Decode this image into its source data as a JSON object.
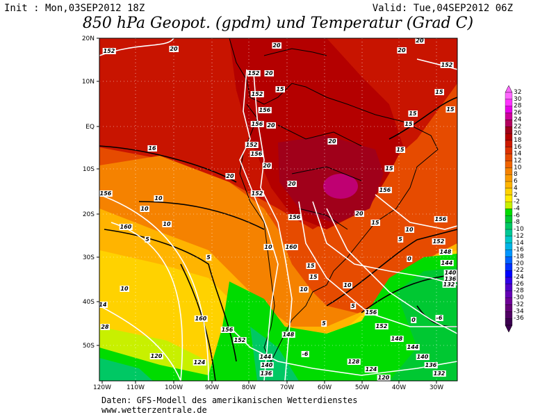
{
  "header": {
    "init": "Init : Mon,03SEP2012 18Z",
    "valid": "Valid: Tue,04SEP2012 06Z",
    "title": "850 hPa Geopot. (gpdm) und Temperatur (Grad C)"
  },
  "map": {
    "lon_labels": [
      "120W",
      "110W",
      "100W",
      "90W",
      "80W",
      "70W",
      "60W",
      "50W",
      "40W",
      "30W"
    ],
    "lat_labels": [
      "20N",
      "10N",
      "EQ",
      "10S",
      "20S",
      "30S",
      "40S",
      "50S"
    ],
    "contour_labels": [
      152,
      20,
      20,
      20,
      20,
      152,
      152,
      20,
      15,
      152,
      15,
      156,
      15,
      15,
      156,
      15,
      20,
      16,
      152,
      20,
      156,
      15,
      20,
      20,
      15,
      156,
      10,
      152,
      20,
      156,
      10,
      10,
      156,
      20,
      15,
      160,
      5,
      10,
      156,
      152,
      10,
      160,
      5,
      148,
      144,
      0,
      5,
      15,
      140,
      136,
      132,
      10,
      10,
      10,
      15,
      5,
      156,
      5,
      160,
      156,
      152,
      152,
      148,
      148,
      144,
      0,
      -6,
      144,
      140,
      136,
      -6,
      128,
      124,
      120,
      140,
      136,
      132,
      124,
      120,
      28,
      14
    ]
  },
  "colorbar": {
    "labels": [
      32,
      30,
      28,
      26,
      24,
      22,
      20,
      18,
      16,
      14,
      12,
      10,
      8,
      6,
      4,
      2,
      -2,
      -4,
      -6,
      -8,
      -10,
      -12,
      -14,
      -16,
      -18,
      -20,
      -22,
      -24,
      -26,
      -28,
      -30,
      -32,
      -34,
      -36
    ],
    "colors": [
      "#ff66ff",
      "#ff33ff",
      "#e600e6",
      "#cc0099",
      "#b3005e",
      "#a0001a",
      "#b40000",
      "#cc1a00",
      "#dc3200",
      "#e64b00",
      "#f06400",
      "#f58200",
      "#fa9b00",
      "#ffb400",
      "#ffd200",
      "#ffeb00",
      "#c8f000",
      "#00dc00",
      "#00c832",
      "#00c864",
      "#00c896",
      "#00c8c8",
      "#00b4e6",
      "#0096ff",
      "#0064ff",
      "#0032ff",
      "#0000ff",
      "#3200e6",
      "#5000c8",
      "#6400b4",
      "#6e0096",
      "#640078",
      "#500064",
      "#3c0050"
    ]
  },
  "footer": {
    "source": "Daten: GFS-Modell des amerikanischen Wetterdienstes",
    "url": "www.wetterzentrale.de"
  }
}
